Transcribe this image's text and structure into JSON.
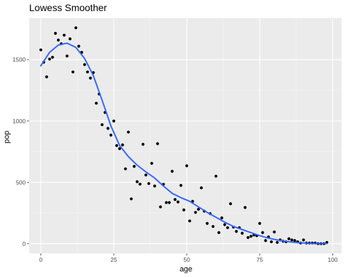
{
  "chart_data": {
    "type": "scatter",
    "title": "Lowess Smoother",
    "xlabel": "age",
    "ylabel": "pop",
    "xlim": [
      -4,
      103
    ],
    "ylim": [
      -80,
      1840
    ],
    "x_ticks": [
      0,
      25,
      50,
      75,
      100
    ],
    "y_ticks": [
      0,
      500,
      1000,
      1500
    ],
    "x_tick_labels": [
      "0",
      "25",
      "50",
      "75",
      "100"
    ],
    "y_tick_labels": [
      "0",
      "500",
      "1000",
      "1500"
    ],
    "grid": true,
    "points": [
      [
        0,
        1580
      ],
      [
        1,
        1480
      ],
      [
        2,
        1360
      ],
      [
        3,
        1505
      ],
      [
        4,
        1520
      ],
      [
        5,
        1715
      ],
      [
        6,
        1660
      ],
      [
        7,
        1630
      ],
      [
        8,
        1700
      ],
      [
        9,
        1530
      ],
      [
        10,
        1670
      ],
      [
        11,
        1400
      ],
      [
        12,
        1760
      ],
      [
        13,
        1610
      ],
      [
        14,
        1560
      ],
      [
        15,
        1460
      ],
      [
        16,
        1400
      ],
      [
        17,
        1350
      ],
      [
        18,
        1395
      ],
      [
        19,
        1145
      ],
      [
        20,
        1220
      ],
      [
        21,
        970
      ],
      [
        22,
        1070
      ],
      [
        23,
        940
      ],
      [
        24,
        885
      ],
      [
        25,
        1000
      ],
      [
        26,
        800
      ],
      [
        27,
        775
      ],
      [
        28,
        805
      ],
      [
        29,
        610
      ],
      [
        30,
        910
      ],
      [
        31,
        365
      ],
      [
        32,
        630
      ],
      [
        33,
        505
      ],
      [
        34,
        485
      ],
      [
        35,
        810
      ],
      [
        36,
        560
      ],
      [
        37,
        490
      ],
      [
        38,
        655
      ],
      [
        39,
        470
      ],
      [
        40,
        815
      ],
      [
        41,
        300
      ],
      [
        42,
        485
      ],
      [
        43,
        335
      ],
      [
        44,
        335
      ],
      [
        45,
        590
      ],
      [
        46,
        360
      ],
      [
        47,
        340
      ],
      [
        48,
        475
      ],
      [
        49,
        275
      ],
      [
        50,
        635
      ],
      [
        51,
        185
      ],
      [
        52,
        345
      ],
      [
        53,
        255
      ],
      [
        54,
        280
      ],
      [
        55,
        455
      ],
      [
        56,
        265
      ],
      [
        57,
        165
      ],
      [
        58,
        245
      ],
      [
        59,
        140
      ],
      [
        60,
        550
      ],
      [
        61,
        90
      ],
      [
        62,
        210
      ],
      [
        63,
        155
      ],
      [
        64,
        130
      ],
      [
        65,
        325
      ],
      [
        66,
        135
      ],
      [
        67,
        100
      ],
      [
        68,
        130
      ],
      [
        69,
        85
      ],
      [
        70,
        295
      ],
      [
        71,
        50
      ],
      [
        72,
        60
      ],
      [
        73,
        70
      ],
      [
        74,
        65
      ],
      [
        75,
        165
      ],
      [
        76,
        90
      ],
      [
        77,
        25
      ],
      [
        78,
        55
      ],
      [
        79,
        15
      ],
      [
        80,
        95
      ],
      [
        81,
        10
      ],
      [
        82,
        30
      ],
      [
        83,
        20
      ],
      [
        84,
        15
      ],
      [
        85,
        40
      ],
      [
        86,
        30
      ],
      [
        87,
        25
      ],
      [
        88,
        15
      ],
      [
        89,
        5
      ],
      [
        90,
        30
      ],
      [
        91,
        5
      ],
      [
        92,
        5
      ],
      [
        93,
        5
      ],
      [
        94,
        5
      ],
      [
        95,
        0
      ],
      [
        96,
        0
      ],
      [
        97,
        0
      ],
      [
        98,
        10
      ]
    ],
    "smooth": [
      [
        0,
        1450
      ],
      [
        3,
        1560
      ],
      [
        6,
        1620
      ],
      [
        9,
        1635
      ],
      [
        12,
        1600
      ],
      [
        15,
        1510
      ],
      [
        18,
        1370
      ],
      [
        21,
        1170
      ],
      [
        24,
        960
      ],
      [
        27,
        800
      ],
      [
        30,
        710
      ],
      [
        33,
        640
      ],
      [
        36,
        585
      ],
      [
        39,
        535
      ],
      [
        42,
        470
      ],
      [
        45,
        410
      ],
      [
        48,
        375
      ],
      [
        51,
        345
      ],
      [
        54,
        300
      ],
      [
        57,
        255
      ],
      [
        60,
        215
      ],
      [
        63,
        175
      ],
      [
        66,
        140
      ],
      [
        69,
        115
      ],
      [
        72,
        90
      ],
      [
        75,
        65
      ],
      [
        78,
        45
      ],
      [
        81,
        30
      ],
      [
        84,
        18
      ],
      [
        87,
        10
      ],
      [
        90,
        5
      ],
      [
        93,
        2
      ],
      [
        96,
        0
      ],
      [
        98,
        0
      ]
    ],
    "colors": {
      "panel": "#ebebeb",
      "grid_major": "#ffffff",
      "grid_minor": "#f5f5f5",
      "points": "#000000",
      "smooth": "#3366ff"
    }
  }
}
